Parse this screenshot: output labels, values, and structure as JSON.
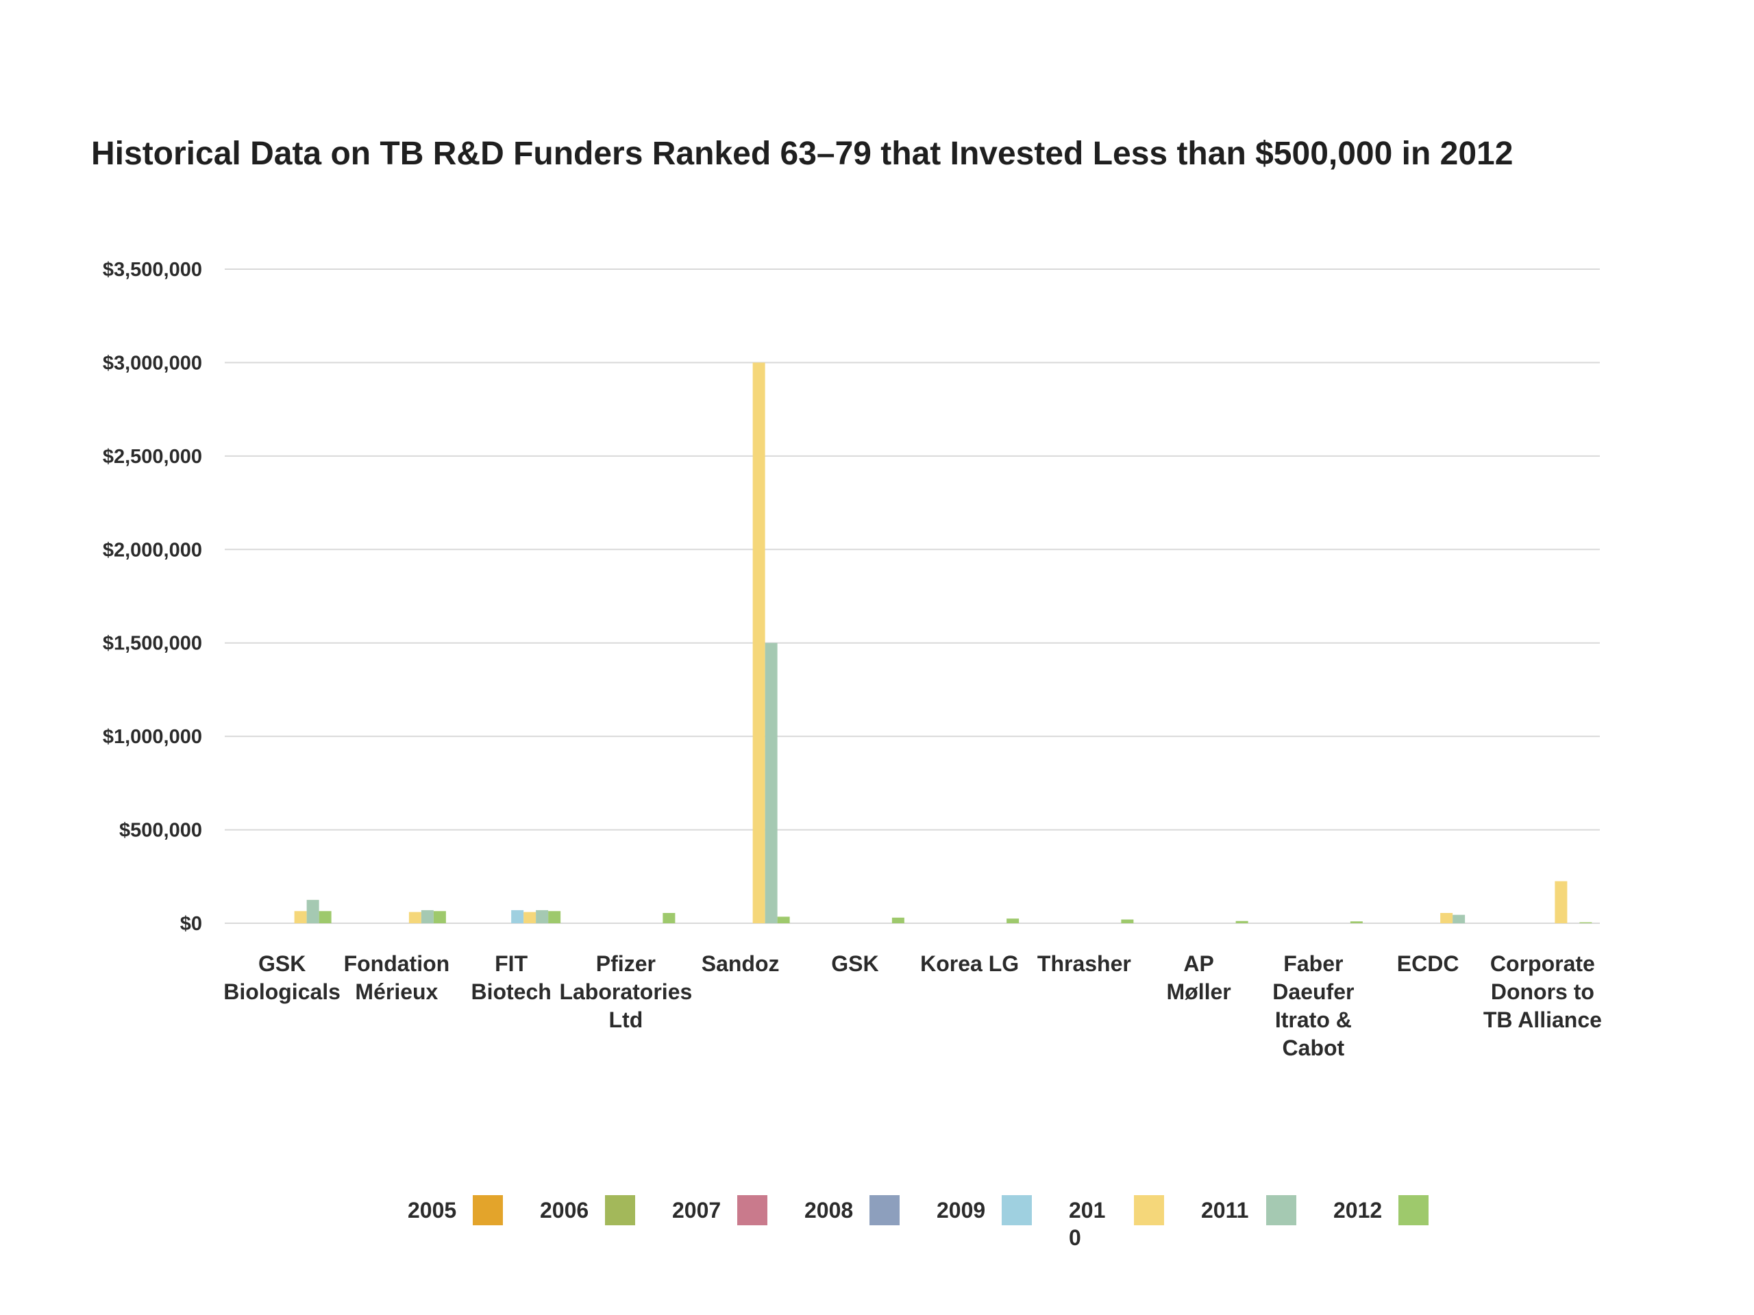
{
  "chart_data": {
    "type": "bar",
    "title": "Historical Data on TB R&D Funders Ranked 63–79 that Invested Less than $500,000 in 2012",
    "xlabel": "",
    "ylabel": "",
    "ylim": [
      0,
      3500000
    ],
    "yticks": [
      0,
      500000,
      1000000,
      1500000,
      2000000,
      2500000,
      3000000,
      3500000
    ],
    "ytick_labels": [
      "$0",
      "$500,000",
      "$1,000,000",
      "$1,500,000",
      "$2,000,000",
      "$2,500,000",
      "$3,000,000",
      "$3,500,000"
    ],
    "grid": true,
    "legend_position": "bottom",
    "categories": [
      [
        "GSK",
        "Biologicals"
      ],
      [
        "Fondation",
        "Mérieux"
      ],
      [
        "FIT",
        "Biotech"
      ],
      [
        "Pfizer",
        "Laboratories",
        "Ltd"
      ],
      [
        "Sandoz"
      ],
      [
        "GSK"
      ],
      [
        "Korea LG"
      ],
      [
        "Thrasher"
      ],
      [
        "AP",
        "Møller"
      ],
      [
        "Faber",
        "Daeufer",
        "Itrato &",
        "Cabot"
      ],
      [
        "ECDC"
      ],
      [
        "Corporate",
        "Donors to",
        "TB Alliance"
      ]
    ],
    "series": [
      {
        "name": "2005",
        "legend_label": [
          "2005"
        ],
        "color": "#e3a42b",
        "values": [
          0,
          0,
          0,
          0,
          0,
          0,
          0,
          0,
          0,
          0,
          0,
          0
        ]
      },
      {
        "name": "2006",
        "legend_label": [
          "2006"
        ],
        "color": "#a3b85a",
        "values": [
          0,
          0,
          0,
          0,
          0,
          0,
          0,
          0,
          0,
          0,
          0,
          0
        ]
      },
      {
        "name": "2007",
        "legend_label": [
          "2007"
        ],
        "color": "#c97a8c",
        "values": [
          0,
          0,
          0,
          0,
          0,
          0,
          0,
          0,
          0,
          0,
          0,
          0
        ]
      },
      {
        "name": "2008",
        "legend_label": [
          "2008"
        ],
        "color": "#8d9fbd",
        "values": [
          0,
          0,
          0,
          0,
          0,
          0,
          0,
          0,
          0,
          0,
          0,
          0
        ]
      },
      {
        "name": "2009",
        "legend_label": [
          "2009"
        ],
        "color": "#9fd0e0",
        "values": [
          0,
          0,
          70000,
          0,
          0,
          0,
          0,
          0,
          0,
          0,
          0,
          0
        ]
      },
      {
        "name": "2010",
        "legend_label": [
          "201",
          "0"
        ],
        "color": "#f5d77a",
        "values": [
          65000,
          60000,
          60000,
          0,
          3000000,
          0,
          0,
          0,
          0,
          0,
          55000,
          225000
        ]
      },
      {
        "name": "2011",
        "legend_label": [
          "2011"
        ],
        "color": "#a5c9b2",
        "values": [
          125000,
          70000,
          70000,
          0,
          1500000,
          0,
          0,
          0,
          0,
          0,
          45000,
          0
        ]
      },
      {
        "name": "2012",
        "legend_label": [
          "2012"
        ],
        "color": "#9ec96c",
        "values": [
          65000,
          65000,
          65000,
          55000,
          35000,
          30000,
          25000,
          20000,
          12000,
          10000,
          0,
          5000
        ]
      }
    ]
  }
}
